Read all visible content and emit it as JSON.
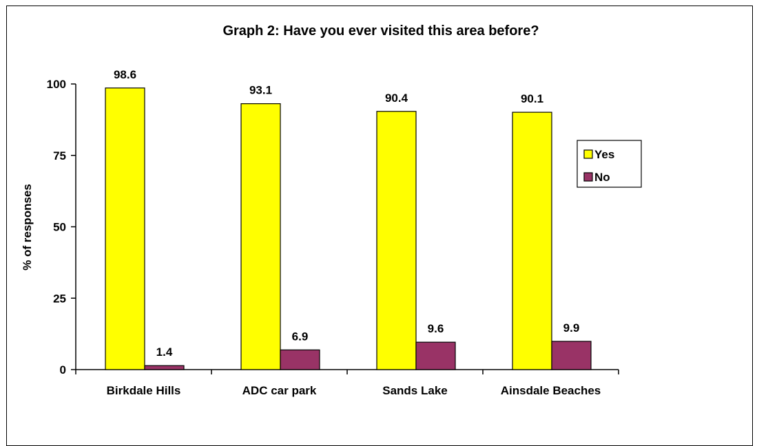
{
  "chart_data": {
    "type": "bar",
    "title": "Graph 2: Have you ever visited this area before?",
    "xlabel": "",
    "ylabel": "% of responses",
    "ylim": [
      0,
      100
    ],
    "yticks": [
      0,
      25,
      50,
      75,
      100
    ],
    "categories": [
      "Birkdale Hills",
      "ADC car park",
      "Sands Lake",
      "Ainsdale Beaches"
    ],
    "series": [
      {
        "name": "Yes",
        "values": [
          98.6,
          93.1,
          90.4,
          90.1
        ],
        "color": "#FFFF00"
      },
      {
        "name": "No",
        "values": [
          1.4,
          6.9,
          9.6,
          9.9
        ],
        "color": "#993366"
      }
    ],
    "grid": false,
    "legend": "right",
    "data_labels": true
  }
}
